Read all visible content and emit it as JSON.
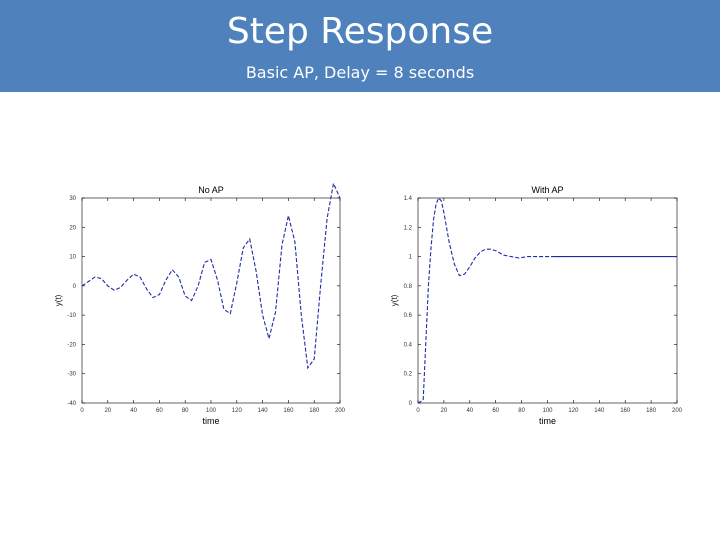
{
  "header": {
    "title": "Step Response",
    "subtitle": "Basic AP, Delay = 8 seconds"
  },
  "colors": {
    "header_bg": "#4f81bd",
    "header_text": "#ffffff",
    "line": "#1f2aa6",
    "axis": "#000000"
  },
  "chart_data": [
    {
      "type": "line",
      "title": "No AP",
      "xlabel": "time",
      "ylabel": "y(t)",
      "xlim": [
        0,
        200
      ],
      "ylim": [
        -40,
        30
      ],
      "xticks": [
        0,
        20,
        40,
        60,
        80,
        100,
        120,
        140,
        160,
        180,
        200
      ],
      "yticks": [
        -40,
        -30,
        -20,
        -10,
        0,
        10,
        20,
        30
      ],
      "grid": false,
      "series": [
        {
          "line_style": "dashed",
          "x": [
            0,
            5,
            10,
            15,
            20,
            25,
            30,
            35,
            40,
            45,
            50,
            55,
            60,
            65,
            70,
            75,
            80,
            85,
            90,
            95,
            100,
            105,
            110,
            115,
            120,
            125,
            130,
            135,
            140,
            145,
            150,
            155,
            160,
            165,
            170,
            175,
            180,
            185,
            190,
            195,
            200
          ],
          "y": [
            0,
            1.5,
            3,
            2.5,
            0,
            -1.5,
            -0.5,
            2,
            4,
            3,
            -1,
            -4,
            -3,
            2,
            5.5,
            3,
            -3.5,
            -5,
            0,
            8,
            9,
            2,
            -8,
            -9.5,
            1,
            13,
            16,
            5,
            -10,
            -18,
            -9,
            14,
            24,
            15,
            -10,
            -28,
            -25,
            0,
            23,
            35,
            30
          ]
        }
      ]
    },
    {
      "type": "line",
      "title": "With AP",
      "xlabel": "time",
      "ylabel": "y(t)",
      "xlim": [
        0,
        200
      ],
      "ylim": [
        0,
        1.4
      ],
      "xticks": [
        0,
        20,
        40,
        60,
        80,
        100,
        120,
        140,
        160,
        180,
        200
      ],
      "yticks": [
        0,
        0.2,
        0.4,
        0.6,
        0.8,
        1,
        1.2,
        1.4
      ],
      "grid": false,
      "series": [
        {
          "line_style": "dashed",
          "x": [
            0,
            4,
            8,
            10,
            12,
            14,
            16,
            18,
            20,
            24,
            28,
            32,
            36,
            40,
            44,
            48,
            52,
            56,
            60,
            66,
            72,
            78,
            84,
            90,
            96,
            102,
            110
          ],
          "y": [
            0,
            0.02,
            0.8,
            1.05,
            1.25,
            1.36,
            1.4,
            1.38,
            1.3,
            1.1,
            0.95,
            0.87,
            0.88,
            0.93,
            0.99,
            1.03,
            1.05,
            1.05,
            1.04,
            1.01,
            1.0,
            0.99,
            1.0,
            1.0,
            1.0,
            1.0,
            1.0
          ]
        },
        {
          "line_style": "solid",
          "x": [
            105,
            200
          ],
          "y": [
            1.0,
            1.0
          ]
        }
      ]
    }
  ]
}
